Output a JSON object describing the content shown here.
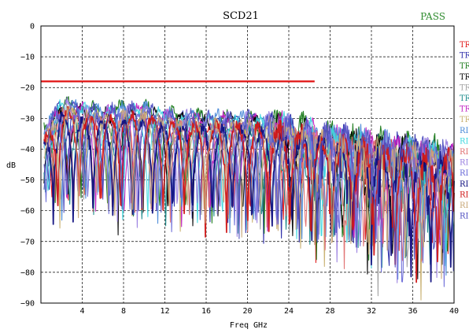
{
  "chart_data": {
    "type": "line",
    "title": "SCD21",
    "status": "PASS",
    "status_color": "#2e8b2e",
    "xlabel": "Freq GHz",
    "ylabel": "dB",
    "xlim": [
      0,
      40
    ],
    "ylim": [
      -90,
      0
    ],
    "x_ticks": [
      4,
      8,
      12,
      16,
      20,
      24,
      28,
      32,
      36,
      40
    ],
    "y_ticks": [
      0,
      -10,
      -20,
      -30,
      -40,
      -50,
      -60,
      -70,
      -80,
      -90
    ],
    "grid": true,
    "limit_line": {
      "x": [
        0,
        26.5
      ],
      "y": -18,
      "color": "#e01010"
    },
    "legend_position": "right",
    "series": [
      {
        "label": "TR",
        "color": "#e01818"
      },
      {
        "label": "TR",
        "color": "#2a2aa8"
      },
      {
        "label": "TR",
        "color": "#1a7a1a"
      },
      {
        "label": "TR",
        "color": "#000000"
      },
      {
        "label": "TR",
        "color": "#a0a0a0"
      },
      {
        "label": "TR",
        "color": "#1a8a8a"
      },
      {
        "label": "TR",
        "color": "#c020c0"
      },
      {
        "label": "TR",
        "color": "#c8b070"
      },
      {
        "label": "RI",
        "color": "#4a8ad8"
      },
      {
        "label": "RI",
        "color": "#40d8e0"
      },
      {
        "label": "RI",
        "color": "#e07070"
      },
      {
        "label": "RI",
        "color": "#9a80e0"
      },
      {
        "label": "RI",
        "color": "#6a6ad8"
      },
      {
        "label": "RI",
        "color": "#101080"
      },
      {
        "label": "RI",
        "color": "#d01818"
      },
      {
        "label": "RI",
        "color": "#c8a878"
      },
      {
        "label": "RI",
        "color": "#5050c0"
      }
    ],
    "approx_envelope": {
      "x": [
        0.5,
        2,
        4,
        6,
        8,
        10,
        12,
        16,
        20,
        24,
        28,
        32,
        36,
        40
      ],
      "upper": [
        -35,
        -26,
        -28,
        -29,
        -28,
        -28,
        -30,
        -31,
        -31,
        -33,
        -36,
        -38,
        -40,
        -42
      ],
      "lower": [
        -62,
        -72,
        -65,
        -68,
        -74,
        -72,
        -70,
        -72,
        -74,
        -78,
        -80,
        -84,
        -88,
        -85
      ]
    }
  }
}
